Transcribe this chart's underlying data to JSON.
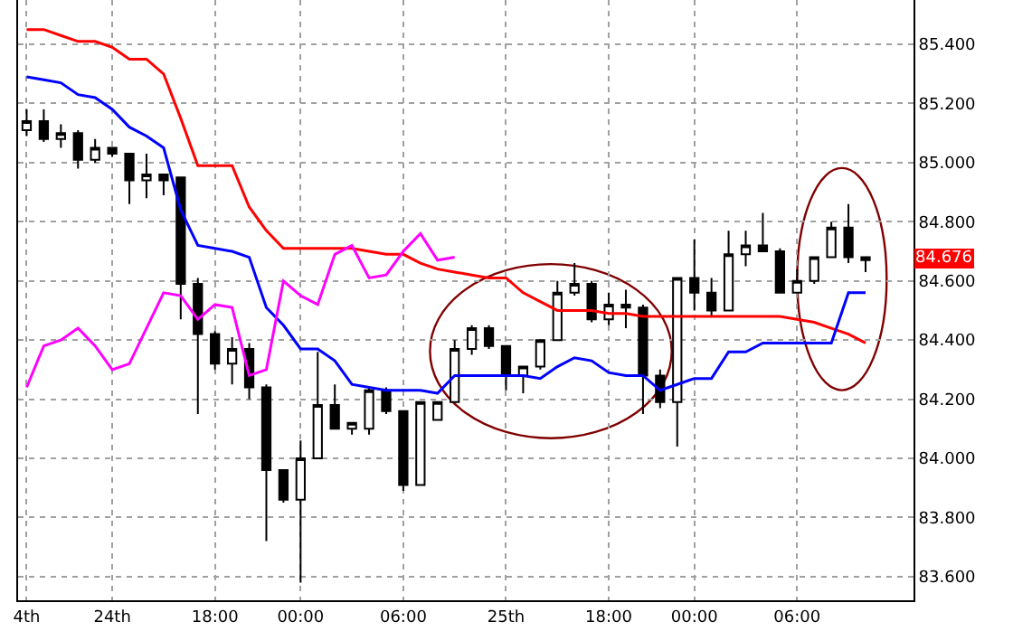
{
  "chart_data": {
    "type": "candlestick",
    "categories": [
      "4th",
      null,
      null,
      null,
      null,
      "24th",
      null,
      null,
      null,
      null,
      null,
      "18:00",
      null,
      null,
      null,
      null,
      "00:00",
      null,
      null,
      null,
      null,
      null,
      "06:00",
      null,
      null,
      null,
      null,
      null,
      "25th",
      null,
      null,
      null,
      null,
      null,
      "18:00",
      null,
      null,
      null,
      null,
      "00:00",
      null,
      null,
      null,
      null,
      null,
      "06:00",
      null,
      null,
      null,
      null
    ],
    "ohlc": [
      [
        85.11,
        85.18,
        85.09,
        85.14
      ],
      [
        85.14,
        85.18,
        85.07,
        85.08
      ],
      [
        85.08,
        85.13,
        85.05,
        85.1
      ],
      [
        85.1,
        85.11,
        84.98,
        85.01
      ],
      [
        85.01,
        85.08,
        85.0,
        85.05
      ],
      [
        85.05,
        85.05,
        85.02,
        85.03
      ],
      [
        85.03,
        85.03,
        84.86,
        84.94
      ],
      [
        84.94,
        85.03,
        84.88,
        84.96
      ],
      [
        84.96,
        84.96,
        84.89,
        84.94
      ],
      [
        84.95,
        84.95,
        84.47,
        84.59
      ],
      [
        84.59,
        84.61,
        84.15,
        84.42
      ],
      [
        84.42,
        84.43,
        84.3,
        84.32
      ],
      [
        84.32,
        84.41,
        84.25,
        84.37
      ],
      [
        84.37,
        84.39,
        84.2,
        84.24
      ],
      [
        84.24,
        84.25,
        83.72,
        83.96
      ],
      [
        83.96,
        83.96,
        83.85,
        83.86
      ],
      [
        83.86,
        84.06,
        83.58,
        84.0
      ],
      [
        84.0,
        84.36,
        84.0,
        84.18
      ],
      [
        84.18,
        84.25,
        84.1,
        84.1
      ],
      [
        84.1,
        84.12,
        84.08,
        84.12
      ],
      [
        84.1,
        84.24,
        84.08,
        84.23
      ],
      [
        84.23,
        84.24,
        84.15,
        84.16
      ],
      [
        84.16,
        84.16,
        83.89,
        83.91
      ],
      [
        83.91,
        84.19,
        83.91,
        84.19
      ],
      [
        84.13,
        84.19,
        84.13,
        84.19
      ],
      [
        84.19,
        84.4,
        84.19,
        84.37
      ],
      [
        84.37,
        84.45,
        84.35,
        84.44
      ],
      [
        84.44,
        84.45,
        84.37,
        84.38
      ],
      [
        84.38,
        84.38,
        84.23,
        84.28
      ],
      [
        84.28,
        84.31,
        84.22,
        84.31
      ],
      [
        84.31,
        84.4,
        84.3,
        84.4
      ],
      [
        84.4,
        84.6,
        84.4,
        84.56
      ],
      [
        84.56,
        84.66,
        84.55,
        84.59
      ],
      [
        84.59,
        84.6,
        84.46,
        84.47
      ],
      [
        84.47,
        84.56,
        84.45,
        84.52
      ],
      [
        84.51,
        84.57,
        84.44,
        84.52
      ],
      [
        84.51,
        84.52,
        84.15,
        84.28
      ],
      [
        84.28,
        84.3,
        84.17,
        84.19
      ],
      [
        84.19,
        84.61,
        84.04,
        84.61
      ],
      [
        84.61,
        84.74,
        84.5,
        84.56
      ],
      [
        84.56,
        84.61,
        84.48,
        84.5
      ],
      [
        84.5,
        84.77,
        84.5,
        84.69
      ],
      [
        84.69,
        84.77,
        84.65,
        84.72
      ],
      [
        84.72,
        84.83,
        84.7,
        84.7
      ],
      [
        84.7,
        84.71,
        84.56,
        84.56
      ],
      [
        84.56,
        84.64,
        84.56,
        84.6
      ],
      [
        84.6,
        84.68,
        84.59,
        84.68
      ],
      [
        84.68,
        84.8,
        84.68,
        84.78
      ],
      [
        84.78,
        84.86,
        84.66,
        84.68
      ],
      [
        84.68,
        84.68,
        84.63,
        84.67
      ]
    ],
    "series": [
      {
        "type": "line",
        "color": "#ff0000",
        "values": [
          85.45,
          85.45,
          85.43,
          85.41,
          85.41,
          85.39,
          85.35,
          85.35,
          85.3,
          85.15,
          84.99,
          84.99,
          84.99,
          84.85,
          84.77,
          84.71,
          84.71,
          84.71,
          84.71,
          84.71,
          84.7,
          84.69,
          84.69,
          84.66,
          84.64,
          84.63,
          84.62,
          84.61,
          84.61,
          84.56,
          84.53,
          84.5,
          84.5,
          84.5,
          84.49,
          84.49,
          84.48,
          84.48,
          84.48,
          84.48,
          84.48,
          84.48,
          84.48,
          84.48,
          84.48,
          84.47,
          84.46,
          84.44,
          84.42,
          84.39
        ]
      },
      {
        "type": "line",
        "color": "#0000ff",
        "values": [
          85.29,
          85.28,
          85.27,
          85.23,
          85.22,
          85.18,
          85.12,
          85.09,
          85.05,
          84.84,
          84.72,
          84.71,
          84.7,
          84.68,
          84.51,
          84.45,
          84.37,
          84.37,
          84.33,
          84.25,
          84.24,
          84.23,
          84.23,
          84.23,
          84.22,
          84.28,
          84.28,
          84.28,
          84.28,
          84.28,
          84.27,
          84.31,
          84.34,
          84.33,
          84.29,
          84.28,
          84.28,
          84.23,
          84.25,
          84.27,
          84.27,
          84.36,
          84.36,
          84.39,
          84.39,
          84.39,
          84.39,
          84.39,
          84.56,
          84.56
        ]
      },
      {
        "type": "line",
        "color": "#ff00ff",
        "values": [
          84.24,
          84.38,
          84.4,
          84.44,
          84.38,
          84.3,
          84.32,
          84.44,
          84.56,
          84.55,
          84.47,
          84.52,
          84.51,
          84.28,
          84.3,
          84.6,
          84.55,
          84.52,
          84.69,
          84.72,
          84.61,
          84.62,
          84.7,
          84.76,
          84.67,
          84.68,
          null,
          null,
          null,
          null,
          null,
          null,
          null,
          null,
          null,
          null,
          null,
          null,
          null,
          null,
          null,
          null,
          null,
          null,
          null,
          null,
          null,
          null,
          null,
          null
        ]
      }
    ],
    "ylim": [
      83.52,
      85.55
    ],
    "yticks": [
      {
        "value": 83.6,
        "label": "83.600"
      },
      {
        "value": 83.8,
        "label": "83.800"
      },
      {
        "value": 84.0,
        "label": "84.000"
      },
      {
        "value": 84.2,
        "label": "84.200"
      },
      {
        "value": 84.4,
        "label": "84.400"
      },
      {
        "value": 84.6,
        "label": "84.600"
      },
      {
        "value": 84.8,
        "label": "84.800"
      },
      {
        "value": 85.0,
        "label": "85.000"
      },
      {
        "value": 85.2,
        "label": "85.200"
      },
      {
        "value": 85.4,
        "label": "85.400"
      }
    ],
    "annotations": [
      "84.676"
    ],
    "grid": true
  }
}
